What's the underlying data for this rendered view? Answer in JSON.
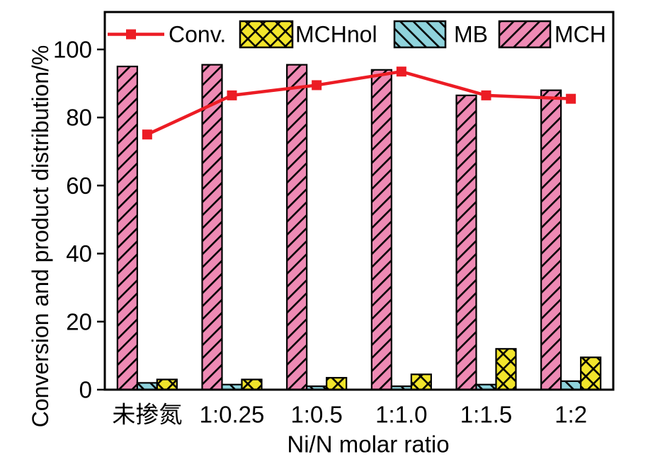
{
  "figure_title": "",
  "chart_data": {
    "type": "bar+line",
    "categories": [
      "未掺氮",
      "1:0.25",
      "1:0.5",
      "1:1.0",
      "1:1.5",
      "1:2"
    ],
    "bar_series": [
      {
        "name": "MCH",
        "values": [
          95,
          95.5,
          95.5,
          94,
          86.5,
          88
        ],
        "color": "#ee8ab4",
        "hatch": "forward-diagonal"
      },
      {
        "name": "MB",
        "values": [
          2,
          1.5,
          1,
          1,
          1.5,
          2.5
        ],
        "color": "#8fd3dc",
        "hatch": "back-diagonal"
      },
      {
        "name": "MCHnol",
        "values": [
          3,
          3,
          3.5,
          4.5,
          12,
          9.5
        ],
        "color": "#f2e52b",
        "hatch": "cross"
      }
    ],
    "line_series": [
      {
        "name": "Conv.",
        "values": [
          75,
          86.5,
          89.5,
          93.5,
          86.5,
          85.5
        ],
        "color": "#ec1c24",
        "marker": "square"
      }
    ],
    "xlabel": "Ni/N molar ratio",
    "ylabel": "Conversion and product distribution/%",
    "y_ticks": [
      0,
      20,
      40,
      60,
      80,
      100
    ],
    "ylim": [
      0,
      111
    ],
    "grid": false,
    "legend_position": "top-inside"
  },
  "legend": {
    "items": [
      {
        "label": "Conv.",
        "type": "line",
        "color": "#ec1c24"
      },
      {
        "label": "MCHnol",
        "type": "swatch",
        "color": "#f2e52b",
        "hatch": "cross"
      },
      {
        "label": "MB",
        "type": "swatch",
        "color": "#8fd3dc",
        "hatch": "back-diagonal"
      },
      {
        "label": "MCH",
        "type": "swatch",
        "color": "#ee8ab4",
        "hatch": "forward-diagonal"
      }
    ]
  },
  "colors": {
    "line": "#ec1c24",
    "bar_mch": "#ee8ab4",
    "bar_mb": "#8fd3dc",
    "bar_mchnol": "#f2e52b",
    "axis": "#000000"
  }
}
